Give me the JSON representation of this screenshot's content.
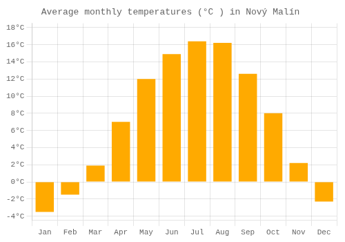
{
  "chart_data": {
    "type": "bar",
    "title": "Average monthly temperatures (°C ) in Nový Malín",
    "categories": [
      "Jan",
      "Feb",
      "Mar",
      "Apr",
      "May",
      "Jun",
      "Jul",
      "Aug",
      "Sep",
      "Oct",
      "Nov",
      "Dec"
    ],
    "values": [
      -3.5,
      -1.5,
      1.9,
      7.0,
      12.0,
      14.9,
      16.4,
      16.2,
      12.6,
      8.0,
      2.2,
      -2.3
    ],
    "color": "#FFAA00",
    "ylim": [
      -4.5,
      18.5
    ],
    "yticks": [
      {
        "value": -4,
        "label": "-4°C"
      },
      {
        "value": -2,
        "label": "-2°C"
      },
      {
        "value": 0,
        "label": "0°C"
      },
      {
        "value": 2,
        "label": "2°C"
      },
      {
        "value": 4,
        "label": "4°C"
      },
      {
        "value": 6,
        "label": "6°C"
      },
      {
        "value": 8,
        "label": "8°C"
      },
      {
        "value": 10,
        "label": "10°C"
      },
      {
        "value": 12,
        "label": "12°C"
      },
      {
        "value": 14,
        "label": "14°C"
      },
      {
        "value": 16,
        "label": "16°C"
      },
      {
        "value": 18,
        "label": "18°C"
      }
    ],
    "grid": true
  }
}
